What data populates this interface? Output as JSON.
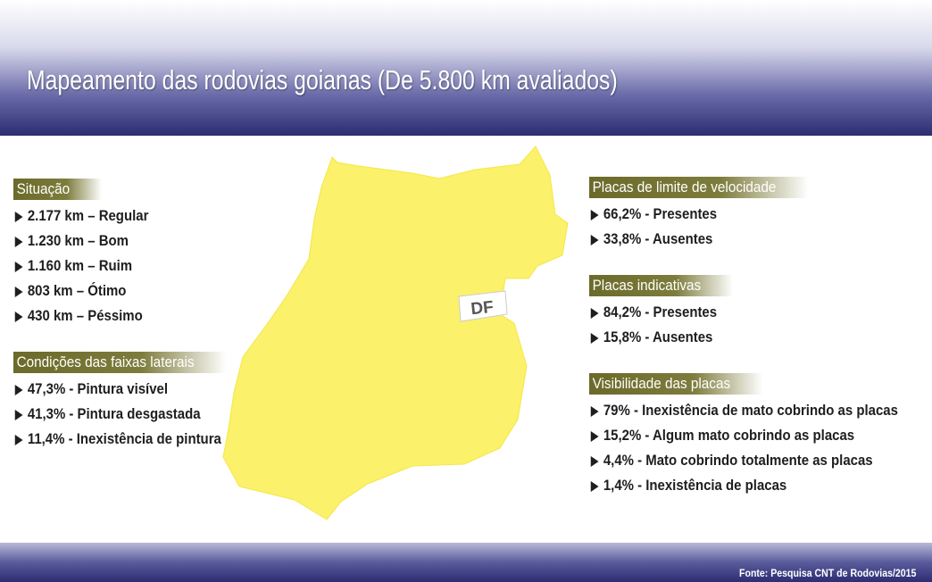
{
  "header": {
    "title": "Mapeamento das rodovias goianas (De 5.800 km avaliados)"
  },
  "left_sections": [
    {
      "heading": "Situação",
      "items": [
        "2.177 km – Regular",
        "1.230 km – Bom",
        "1.160 km – Ruim",
        "803 km – Ótimo",
        "430 km – Péssimo"
      ]
    },
    {
      "heading": "Condições das faixas laterais",
      "items": [
        "47,3% - Pintura visível",
        "41,3% - Pintura desgastada",
        "11,4% - Inexistência de pintura"
      ]
    }
  ],
  "right_sections": [
    {
      "heading": "Placas de limite de velocidade",
      "items": [
        "66,2% - Presentes",
        "33,8% - Ausentes"
      ]
    },
    {
      "heading": "Placas indicativas",
      "items": [
        "84,2% - Presentes",
        "15,8% - Ausentes"
      ]
    },
    {
      "heading": "Visibilidade das placas",
      "items": [
        "79% - Inexistência de mato cobrindo as placas",
        "15,2% - Algum mato cobrindo as placas",
        "4,4% - Mato cobrindo totalmente as placas",
        "1,4% - Inexistência de placas"
      ]
    }
  ],
  "map": {
    "label": "DF"
  },
  "footer": {
    "source": "Fonte: Pesquisa CNT de Rodovias/2015"
  }
}
